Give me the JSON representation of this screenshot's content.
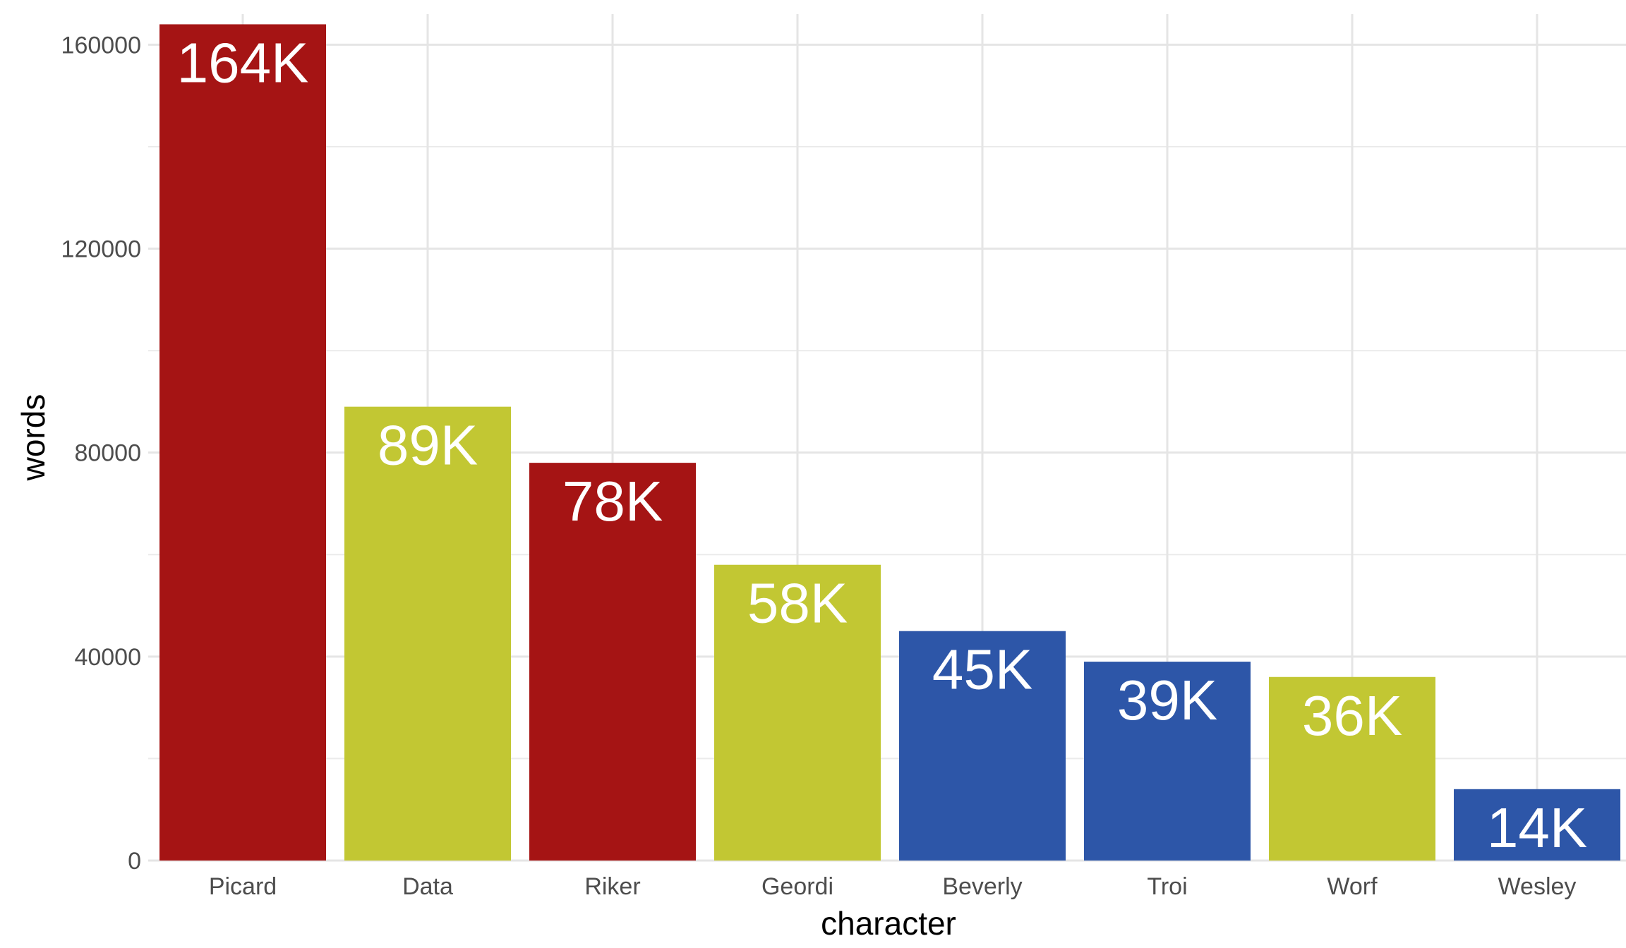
{
  "chart_data": {
    "type": "bar",
    "xlabel": "character",
    "ylabel": "words",
    "ylim": [
      0,
      166000
    ],
    "yticks": [
      0,
      40000,
      80000,
      120000,
      160000
    ],
    "grid": true,
    "categories": [
      "Picard",
      "Data",
      "Riker",
      "Geordi",
      "Beverly",
      "Troi",
      "Worf",
      "Wesley"
    ],
    "values": [
      164000,
      89000,
      78000,
      58000,
      45000,
      39000,
      36000,
      14000
    ],
    "labels": [
      "164K",
      "89K",
      "78K",
      "58K",
      "45K",
      "39K",
      "36K",
      "14K"
    ],
    "colors": [
      "#a51414",
      "#c2c733",
      "#a51414",
      "#c2c733",
      "#2d56a8",
      "#2d56a8",
      "#c2c733",
      "#2d56a8"
    ]
  }
}
